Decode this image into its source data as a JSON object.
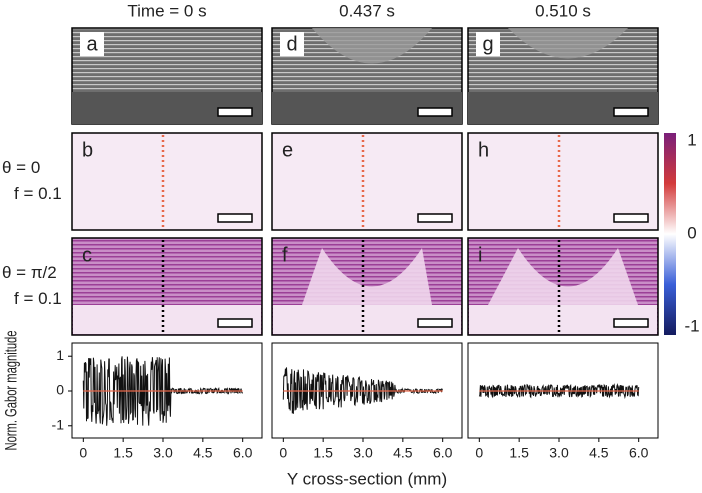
{
  "columns": [
    {
      "time": "Time = 0 s",
      "panels": [
        "a",
        "b",
        "c"
      ]
    },
    {
      "time": "0.437 s",
      "panels": [
        "d",
        "e",
        "f"
      ]
    },
    {
      "time": "0.510 s",
      "panels": [
        "g",
        "h",
        "i"
      ]
    }
  ],
  "rows": [
    {
      "theta": "θ = 0",
      "f": "f = 0.1"
    },
    {
      "theta": "θ = π/2",
      "f": "f = 0.1"
    }
  ],
  "colorbar": {
    "ticks": [
      1,
      0,
      -1
    ]
  },
  "gabor_plot": {
    "ylabel": "Norm. Gabor magnitude",
    "xlabel": "Y cross-section (mm)",
    "xlim": [
      -0.2,
      6.2
    ],
    "ylim": [
      -1.15,
      1.15
    ],
    "yticks": [
      -1,
      0,
      1
    ],
    "xticks": [
      0,
      1.5,
      {
        "value": 3,
        "label": "3.0"
      },
      4.5,
      {
        "value": 6,
        "label": "6.0"
      }
    ]
  }
}
